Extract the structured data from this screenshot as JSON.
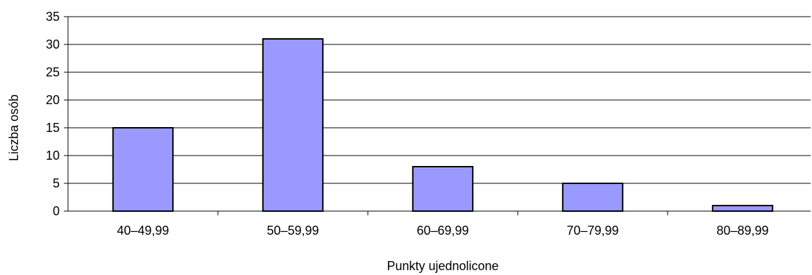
{
  "chart_data": {
    "type": "bar",
    "categories": [
      "40–49,99",
      "50–59,99",
      "60–69,99",
      "70–79,99",
      "80–89,99"
    ],
    "values": [
      15,
      31,
      8,
      5,
      1
    ],
    "title": "",
    "xlabel": "Punkty ujednolicone",
    "ylabel": "Liczba osób",
    "ylim": [
      0,
      35
    ],
    "yticks": [
      0,
      5,
      10,
      15,
      20,
      25,
      30,
      35
    ],
    "grid": true,
    "legend": "none",
    "colors": {
      "bar_fill": "#9999ff",
      "bar_stroke": "#000000",
      "grid": "#000000"
    }
  }
}
